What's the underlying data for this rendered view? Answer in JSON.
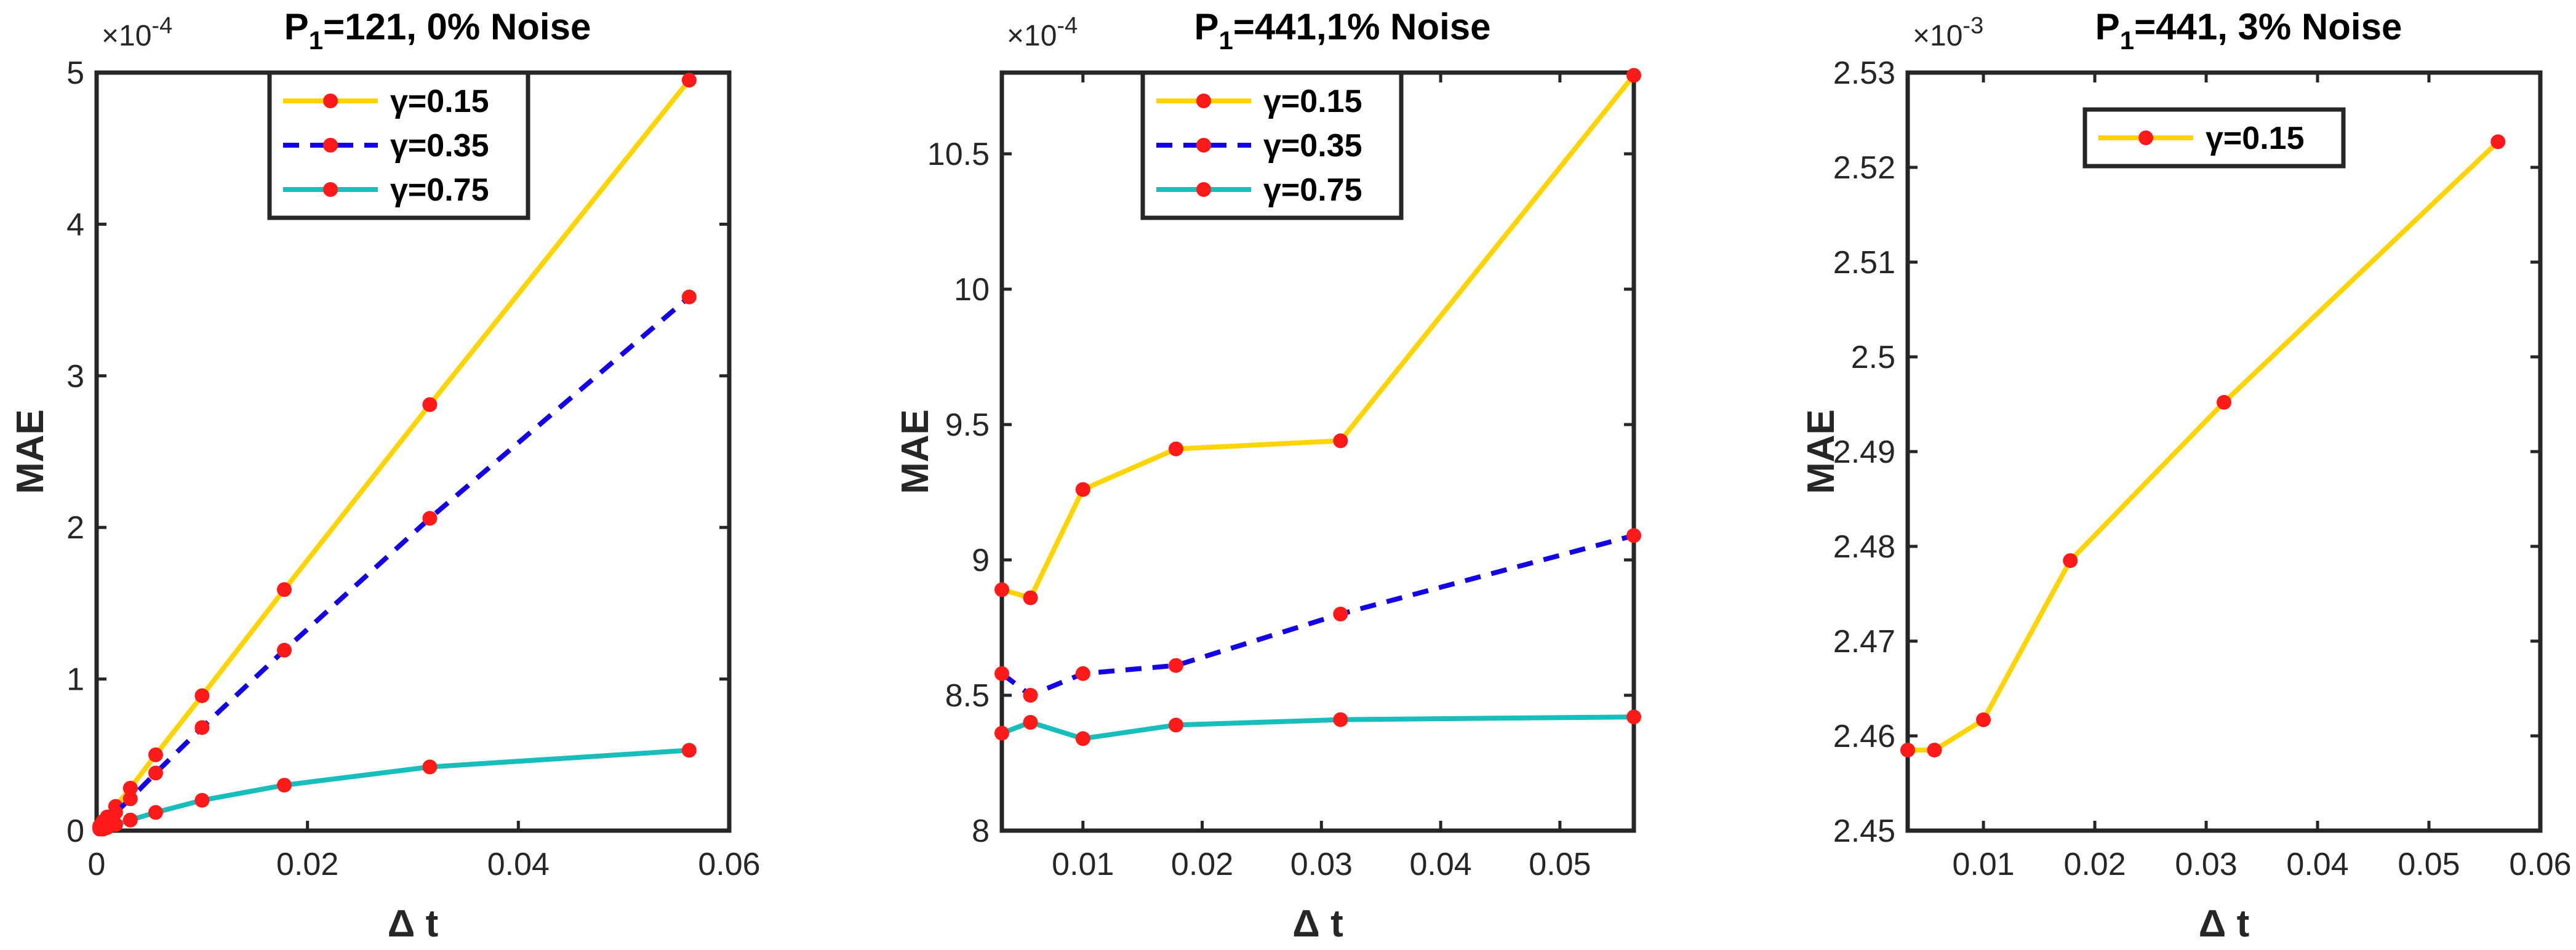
{
  "chart_data": [
    {
      "type": "line",
      "title_main": "P",
      "title_sub": "1",
      "title_rest": "=121, 0% Noise",
      "xlabel": "Δ t",
      "ylabel": "MAE",
      "exponent_label": "×10",
      "exponent_power": "-4",
      "xlim": [
        0,
        0.06
      ],
      "ylim": [
        0,
        5
      ],
      "xticks": [
        0,
        0.02,
        0.04,
        0.06
      ],
      "xtick_labels": [
        "0",
        "0.02",
        "0.04",
        "0.06"
      ],
      "yticks": [
        0,
        1,
        2,
        3,
        4,
        5
      ],
      "ytick_labels": [
        "0",
        "1",
        "2",
        "3",
        "4",
        "5"
      ],
      "legend_position": "top-center",
      "series": [
        {
          "name": "γ=0.15",
          "color": "#FFD400",
          "dash": false,
          "x": [
            0.0003,
            0.0006,
            0.001,
            0.0018,
            0.0032,
            0.0056,
            0.01,
            0.0178,
            0.0316,
            0.0562
          ],
          "y": [
            0.03,
            0.06,
            0.09,
            0.16,
            0.28,
            0.5,
            0.89,
            1.59,
            2.81,
            4.95
          ]
        },
        {
          "name": "γ=0.35",
          "color": "#1400E6",
          "dash": true,
          "x": [
            0.0003,
            0.0006,
            0.001,
            0.0018,
            0.0032,
            0.0056,
            0.01,
            0.0178,
            0.0316,
            0.0562
          ],
          "y": [
            0.02,
            0.04,
            0.07,
            0.12,
            0.21,
            0.38,
            0.68,
            1.19,
            2.06,
            3.52
          ]
        },
        {
          "name": "γ=0.75",
          "color": "#17BEBB",
          "dash": false,
          "x": [
            0.0003,
            0.0006,
            0.001,
            0.0018,
            0.0032,
            0.0056,
            0.01,
            0.0178,
            0.0316,
            0.0562
          ],
          "y": [
            0.01,
            0.01,
            0.02,
            0.04,
            0.07,
            0.12,
            0.2,
            0.3,
            0.42,
            0.53
          ]
        }
      ]
    },
    {
      "type": "line",
      "title_main": "P",
      "title_sub": "1",
      "title_rest": "=441,1%  Noise",
      "xlabel": "Δ t",
      "ylabel": "MAE",
      "exponent_label": "×10",
      "exponent_power": "-4",
      "xlim": [
        0.0032,
        0.0562
      ],
      "ylim": [
        8,
        10.8
      ],
      "xticks": [
        0.01,
        0.02,
        0.03,
        0.04,
        0.05
      ],
      "xtick_labels": [
        "0.01",
        "0.02",
        "0.03",
        "0.04",
        "0.05"
      ],
      "yticks": [
        8,
        8.5,
        9,
        9.5,
        10,
        10.5
      ],
      "ytick_labels": [
        "8",
        "8.5",
        "9",
        "9.5",
        "10",
        "10.5"
      ],
      "legend_position": "top-left",
      "series": [
        {
          "name": "γ=0.15",
          "color": "#FFD400",
          "dash": false,
          "x": [
            0.0032,
            0.0056,
            0.01,
            0.0178,
            0.0316,
            0.0562
          ],
          "y": [
            8.89,
            8.86,
            9.26,
            9.41,
            9.44,
            10.79
          ]
        },
        {
          "name": "γ=0.35",
          "color": "#1400E6",
          "dash": true,
          "x": [
            0.0032,
            0.0056,
            0.01,
            0.0178,
            0.0316,
            0.0562
          ],
          "y": [
            8.58,
            8.5,
            8.58,
            8.61,
            8.8,
            9.09
          ]
        },
        {
          "name": "γ=0.75",
          "color": "#17BEBB",
          "dash": false,
          "x": [
            0.0032,
            0.0056,
            0.01,
            0.0178,
            0.0316,
            0.0562
          ],
          "y": [
            8.36,
            8.4,
            8.34,
            8.39,
            8.41,
            8.42
          ]
        }
      ]
    },
    {
      "type": "line",
      "title_main": "P",
      "title_sub": "1",
      "title_rest": "=441, 3% Noise",
      "xlabel": "Δ t",
      "ylabel": "MAE",
      "exponent_label": "×10",
      "exponent_power": "-3",
      "xlim": [
        0.0032,
        0.06
      ],
      "ylim": [
        2.45,
        2.53
      ],
      "xticks": [
        0.01,
        0.02,
        0.03,
        0.04,
        0.05,
        0.06
      ],
      "xtick_labels": [
        "0.01",
        "0.02",
        "0.03",
        "0.04",
        "0.05",
        "0.06"
      ],
      "yticks": [
        2.45,
        2.46,
        2.47,
        2.48,
        2.49,
        2.5,
        2.51,
        2.52,
        2.53
      ],
      "ytick_labels": [
        "2.45",
        "2.46",
        "2.47",
        "2.48",
        "2.49",
        "2.5",
        "2.51",
        "2.52",
        "2.53"
      ],
      "legend_position": "top-center",
      "series": [
        {
          "name": "γ=0.15",
          "color": "#FFD400",
          "dash": false,
          "x": [
            0.0032,
            0.0056,
            0.01,
            0.0178,
            0.0316,
            0.0562
          ],
          "y": [
            2.4585,
            2.4585,
            2.4617,
            2.4785,
            2.4952,
            2.5227
          ]
        }
      ]
    }
  ]
}
